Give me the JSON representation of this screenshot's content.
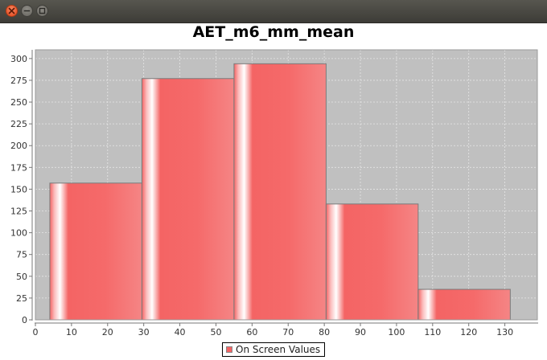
{
  "window": {
    "close_icon": "close-icon",
    "minimize_icon": "minimize-icon",
    "maximize_icon": "maximize-icon"
  },
  "colors": {
    "plot_background": "#c0c0c0",
    "bar_fill": "#f46464",
    "bar_highlight": "#ffffff",
    "bar_outline": "#7a7a7a",
    "gridline": "#e6e6e6",
    "axis": "#777777"
  },
  "chart_data": {
    "type": "bar",
    "title": "AET_m6_mm_mean",
    "xlabel": "",
    "ylabel": "",
    "xlim": [
      0,
      139
    ],
    "ylim": [
      0,
      310
    ],
    "x_ticks": [
      0,
      10,
      20,
      30,
      40,
      50,
      60,
      70,
      80,
      90,
      100,
      110,
      120,
      130
    ],
    "y_ticks": [
      0,
      25,
      50,
      75,
      100,
      125,
      150,
      175,
      200,
      225,
      250,
      275,
      300
    ],
    "grid": true,
    "legend": "bottom-center",
    "series": [
      {
        "name": "On Screen Values",
        "bins": [
          {
            "x0": 4,
            "x1": 29.5,
            "value": 157
          },
          {
            "x0": 29.5,
            "x1": 55,
            "value": 277
          },
          {
            "x0": 55,
            "x1": 80.5,
            "value": 294
          },
          {
            "x0": 80.5,
            "x1": 106,
            "value": 133
          },
          {
            "x0": 106,
            "x1": 131.5,
            "value": 35
          }
        ]
      }
    ]
  }
}
